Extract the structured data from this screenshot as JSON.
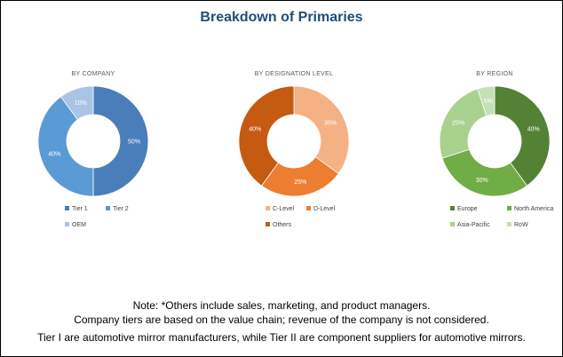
{
  "title": "Breakdown of Primaries",
  "chart_data": [
    {
      "type": "pie",
      "title": "BY COMPANY",
      "categories": [
        "Tier 1",
        "Tier 2",
        "OEM"
      ],
      "values": [
        50,
        40,
        10
      ],
      "labels": [
        "50%",
        "40%",
        "10%"
      ],
      "colors": [
        "#4A7EBB",
        "#5B9BD5",
        "#A9C4E4"
      ],
      "legend": [
        "Tier 1",
        "Tier 2",
        "OEM"
      ]
    },
    {
      "type": "pie",
      "title": "BY DESIGNATION LEVEL",
      "categories": [
        "C-Level",
        "D-Level",
        "Others"
      ],
      "values": [
        35,
        25,
        40
      ],
      "labels": [
        "35%",
        "25%",
        "40%"
      ],
      "colors": [
        "#F4B183",
        "#ED7D31",
        "#C55A11"
      ],
      "legend": [
        "C-Level",
        "D-Level",
        "Others"
      ]
    },
    {
      "type": "pie",
      "title": "BY REGION",
      "categories": [
        "Europe",
        "North America",
        "Asia-Pacific",
        "RoW"
      ],
      "values": [
        40,
        30,
        25,
        5
      ],
      "labels": [
        "40%",
        "30%",
        "25%",
        "5%"
      ],
      "colors": [
        "#548235",
        "#70AD47",
        "#A9D18E",
        "#C5E0B4"
      ],
      "legend": [
        "Europe",
        "North America",
        "Asia-Pacific",
        "RoW"
      ]
    }
  ],
  "notes": {
    "line1": "Note: *Others include sales, marketing, and product managers.",
    "line2": "Company tiers are based on the value chain; revenue of the company is not considered.",
    "line3": "Tier I are automotive mirror manufacturers, while Tier II are component suppliers for automotive mirrors."
  }
}
